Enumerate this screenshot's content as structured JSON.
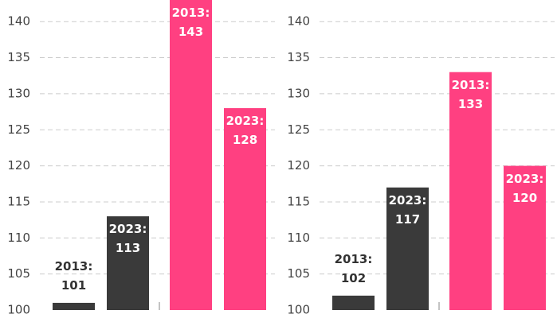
{
  "chart_data": [
    {
      "type": "bar",
      "categories": [
        null,
        null,
        null,
        null
      ],
      "values": [
        101,
        113,
        143,
        128
      ],
      "value_labels": [
        "2013: 101",
        "2023: 113",
        "2013: 143",
        "2023: 128"
      ],
      "colors": [
        "#3a3a3a",
        "#3a3a3a",
        "#ff4081",
        "#ff4081"
      ],
      "ylim": [
        100,
        143
      ],
      "yticks": [
        100,
        105,
        110,
        115,
        120,
        125,
        130,
        135,
        140
      ],
      "grid": true
    },
    {
      "type": "bar",
      "categories": [
        null,
        null,
        null,
        null
      ],
      "values": [
        102,
        117,
        133,
        120
      ],
      "value_labels": [
        "2013: 102",
        "2023: 117",
        "2013: 133",
        "2023: 120"
      ],
      "colors": [
        "#3a3a3a",
        "#3a3a3a",
        "#ff4081",
        "#ff4081"
      ],
      "ylim": [
        100,
        143
      ],
      "yticks": [
        100,
        105,
        110,
        115,
        120,
        125,
        130,
        135,
        140
      ],
      "grid": true
    }
  ]
}
